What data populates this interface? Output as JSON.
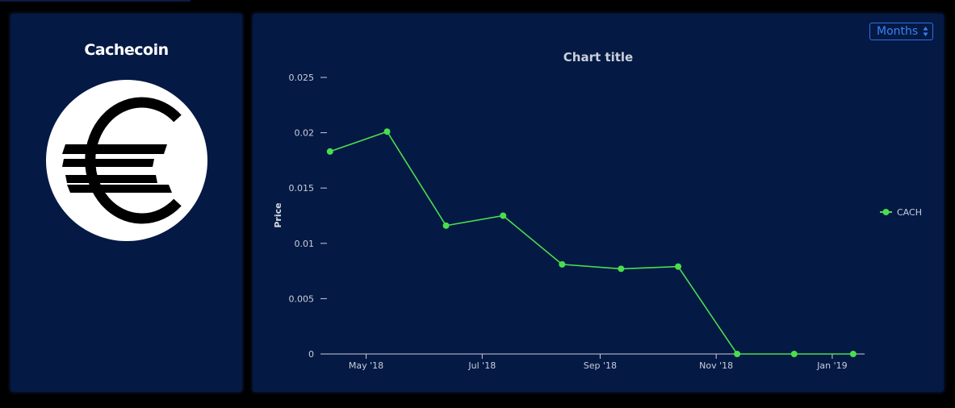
{
  "coin": {
    "name": "Cachecoin",
    "logo_icon": "euro-icon"
  },
  "controls": {
    "period_label": "Months"
  },
  "colors": {
    "panel_bg": "#041944",
    "series": "#4ade4e",
    "accent": "#3b82f6"
  },
  "chart_data": {
    "type": "line",
    "title": "Chart title",
    "xlabel": "",
    "ylabel": "Price",
    "ylim": [
      0,
      0.025
    ],
    "y_ticks": [
      {
        "value": 0,
        "label": "0"
      },
      {
        "value": 0.005,
        "label": "0.005"
      },
      {
        "value": 0.01,
        "label": "0.01"
      },
      {
        "value": 0.015,
        "label": "0.015"
      },
      {
        "value": 0.02,
        "label": "0.02"
      },
      {
        "value": 0.025,
        "label": "0.025"
      }
    ],
    "x_ticks": [
      {
        "date": "2018-05-01",
        "label": "May '18"
      },
      {
        "date": "2018-07-01",
        "label": "Jul '18"
      },
      {
        "date": "2018-09-01",
        "label": "Sep '18"
      },
      {
        "date": "2018-11-01",
        "label": "Nov '18"
      },
      {
        "date": "2019-01-01",
        "label": "Jan '19"
      }
    ],
    "xlim": [
      "2018-04-07",
      "2019-01-18"
    ],
    "legend_position": "right",
    "series": [
      {
        "name": "CACH",
        "color": "#4ade4e",
        "points": [
          {
            "x": "2018-04-12",
            "y": 0.0183
          },
          {
            "x": "2018-05-12",
            "y": 0.0201
          },
          {
            "x": "2018-06-12",
            "y": 0.0116
          },
          {
            "x": "2018-07-12",
            "y": 0.0125
          },
          {
            "x": "2018-08-12",
            "y": 0.0081
          },
          {
            "x": "2018-09-12",
            "y": 0.0077
          },
          {
            "x": "2018-10-12",
            "y": 0.0079
          },
          {
            "x": "2018-11-12",
            "y": 0.0
          },
          {
            "x": "2018-12-12",
            "y": 0.0
          },
          {
            "x": "2019-01-12",
            "y": 0.0
          }
        ]
      }
    ]
  }
}
